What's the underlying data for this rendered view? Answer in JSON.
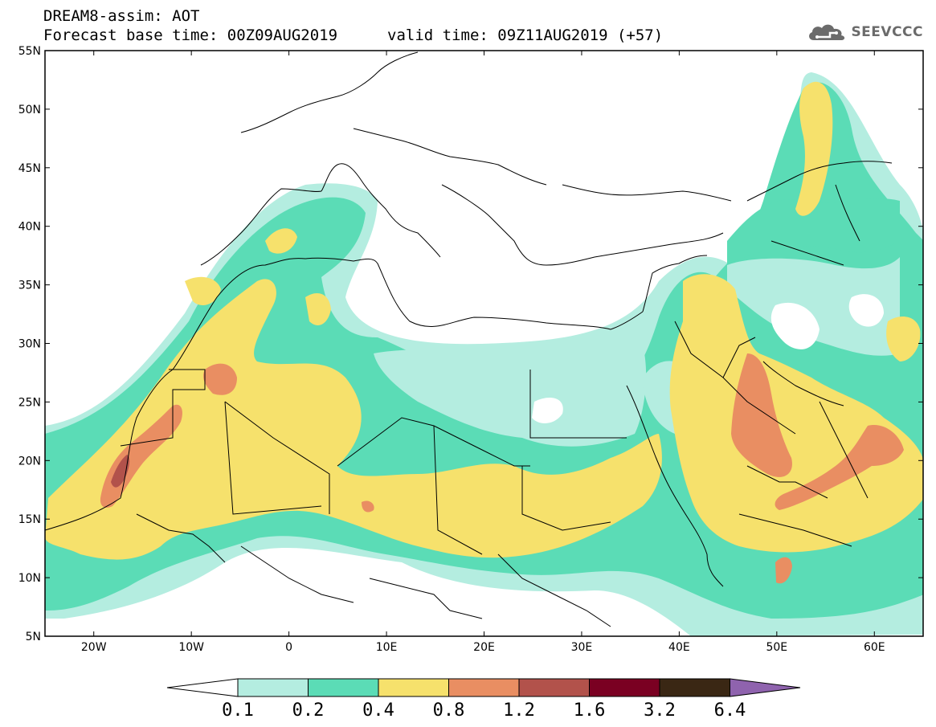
{
  "header": {
    "line1": "DREAM8-assim: AOT",
    "line2": "Forecast base time: 00Z09AUG2019",
    "line2b": "valid time: 09Z11AUG2019 (+57)",
    "brand": "SEEVCCC",
    "brand_icon": "cloud-icon"
  },
  "map": {
    "lat_labels": [
      "55N",
      "50N",
      "45N",
      "40N",
      "35N",
      "30N",
      "25N",
      "20N",
      "15N",
      "10N",
      "5N"
    ],
    "lon_labels": [
      "20W",
      "10W",
      "0",
      "10E",
      "20E",
      "30E",
      "40E",
      "50E",
      "60E"
    ],
    "lon_range": [
      -25,
      65
    ],
    "lat_range": [
      5,
      55
    ]
  },
  "colorbar": {
    "labels": [
      "0.1",
      "0.2",
      "0.4",
      "0.8",
      "1.2",
      "1.6",
      "3.2",
      "6.4"
    ],
    "colors": [
      "#b4ede0",
      "#5bdcb6",
      "#f6e16c",
      "#e98e62",
      "#b2524b",
      "#7a0022",
      "#3a2714"
    ],
    "over_color": "#8f63ae"
  }
}
